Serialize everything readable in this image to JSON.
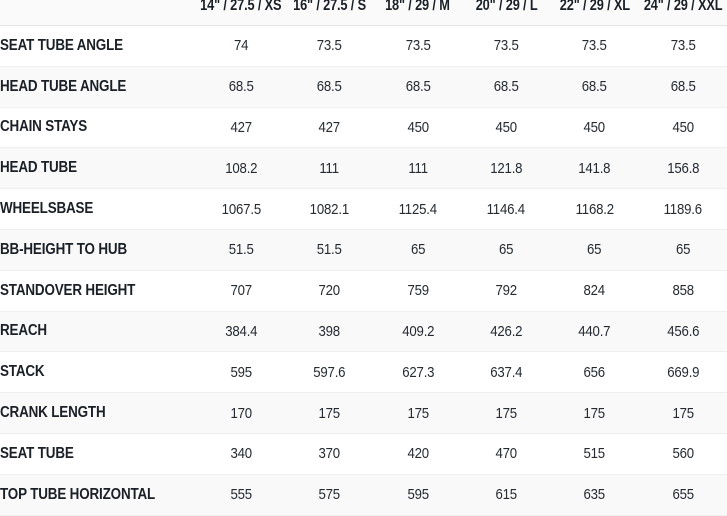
{
  "chart_data": {
    "type": "table",
    "columns": [
      "14\" / 27.5 / XS",
      "16\" / 27.5 / S",
      "18\" / 29 / M",
      "20\" / 29 / L",
      "22\" / 29 / XL",
      "24\" / 29 / XXL"
    ],
    "rows": [
      {
        "label": "SEAT TUBE ANGLE",
        "values": [
          "74",
          "73.5",
          "73.5",
          "73.5",
          "73.5",
          "73.5"
        ]
      },
      {
        "label": "HEAD TUBE ANGLE",
        "values": [
          "68.5",
          "68.5",
          "68.5",
          "68.5",
          "68.5",
          "68.5"
        ]
      },
      {
        "label": "CHAIN STAYS",
        "values": [
          "427",
          "427",
          "450",
          "450",
          "450",
          "450"
        ]
      },
      {
        "label": "HEAD TUBE",
        "values": [
          "108.2",
          "111",
          "111",
          "121.8",
          "141.8",
          "156.8"
        ]
      },
      {
        "label": "WHEELSBASE",
        "values": [
          "1067.5",
          "1082.1",
          "1125.4",
          "1146.4",
          "1168.2",
          "1189.6"
        ]
      },
      {
        "label": "BB-HEIGHT TO HUB",
        "values": [
          "51.5",
          "51.5",
          "65",
          "65",
          "65",
          "65"
        ]
      },
      {
        "label": "STANDOVER HEIGHT",
        "values": [
          "707",
          "720",
          "759",
          "792",
          "824",
          "858"
        ]
      },
      {
        "label": "REACH",
        "values": [
          "384.4",
          "398",
          "409.2",
          "426.2",
          "440.7",
          "456.6"
        ]
      },
      {
        "label": "STACK",
        "values": [
          "595",
          "597.6",
          "627.3",
          "637.4",
          "656",
          "669.9"
        ]
      },
      {
        "label": "CRANK LENGTH",
        "values": [
          "170",
          "175",
          "175",
          "175",
          "175",
          "175"
        ]
      },
      {
        "label": "SEAT TUBE",
        "values": [
          "340",
          "370",
          "420",
          "470",
          "515",
          "560"
        ]
      },
      {
        "label": "TOP TUBE HORIZONTAL",
        "values": [
          "555",
          "575",
          "595",
          "615",
          "635",
          "655"
        ]
      }
    ]
  },
  "colors": {
    "heading_text": "#1a2026",
    "value_text": "#252b31",
    "stripe_background": "#f9f9f9",
    "header_border": "#e3e3e3",
    "row_divider": "#efefef"
  }
}
